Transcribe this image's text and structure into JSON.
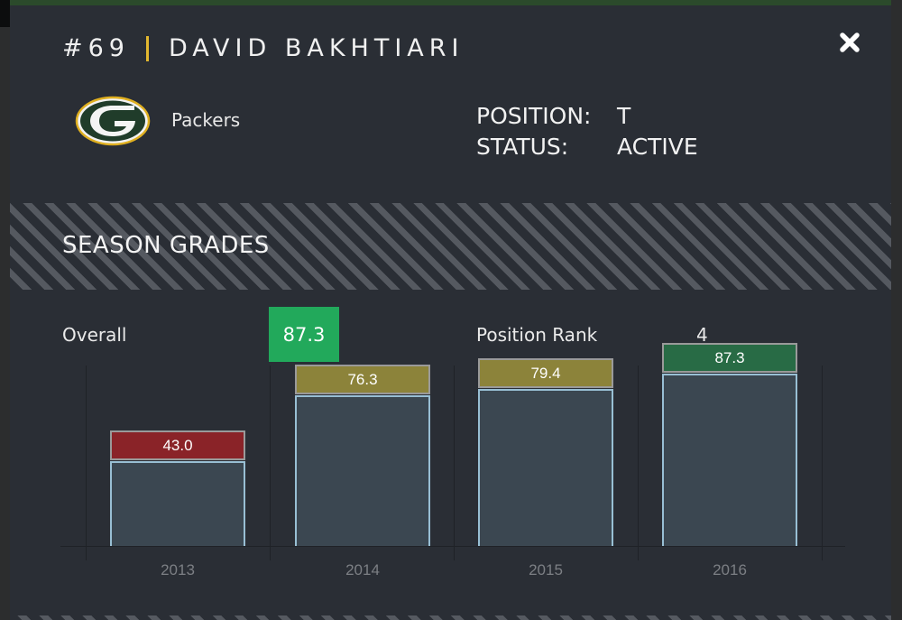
{
  "player": {
    "number": "#69",
    "name": "DAVID BAKHTIARI",
    "team": "Packers",
    "position_label": "POSITION:",
    "position": "T",
    "status_label": "STATUS:",
    "status": "ACTIVE"
  },
  "colors": {
    "accent_separator": "#e3b82f",
    "top_bar": "#2b4a2b",
    "overall_badge": "#22a95b",
    "grade_low": "#8a2328",
    "grade_mid": "#8c833a",
    "grade_high": "#286b45",
    "bar_fill": "#3b4751",
    "bar_border": "#98bfd4"
  },
  "section": {
    "title": "SEASON GRADES",
    "overall_label": "Overall",
    "overall_value": "87.3",
    "rank_label": "Position Rank",
    "rank_value": "4"
  },
  "icons": {
    "close": "close-icon",
    "team_logo": "packers-g-logo-icon"
  },
  "chart_data": {
    "type": "bar",
    "title": "SEASON GRADES",
    "xlabel": "",
    "ylabel": "",
    "categories": [
      "2013",
      "2014",
      "2015",
      "2016"
    ],
    "values": [
      43.0,
      76.3,
      79.4,
      87.3
    ],
    "value_labels": [
      "43.0",
      "76.3",
      "79.4",
      "87.3"
    ],
    "label_colors": [
      "#8a2328",
      "#8c833a",
      "#8c833a",
      "#286b45"
    ],
    "ylim": [
      0,
      100
    ],
    "grid": false,
    "legend": "none"
  }
}
